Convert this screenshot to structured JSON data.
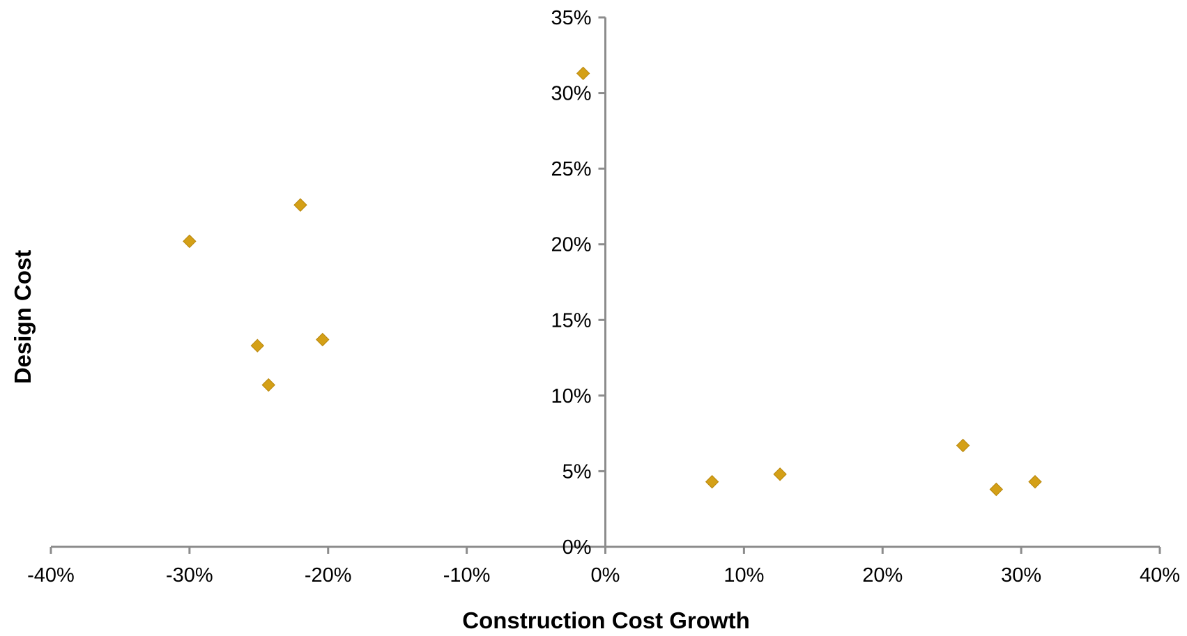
{
  "chart_data": {
    "type": "scatter",
    "title": "",
    "xlabel": "Construction Cost Growth",
    "ylabel": "Design Cost",
    "xlim": [
      -40,
      40
    ],
    "ylim": [
      0,
      35
    ],
    "x_ticks": [
      -40,
      -30,
      -20,
      -10,
      0,
      10,
      20,
      30,
      40
    ],
    "y_ticks": [
      0,
      5,
      10,
      15,
      20,
      25,
      30,
      35
    ],
    "x_tick_labels": [
      "-40%",
      "-30%",
      "-20%",
      "-10%",
      "0%",
      "10%",
      "20%",
      "30%",
      "40%"
    ],
    "y_tick_labels": [
      "0%",
      "5%",
      "10%",
      "15%",
      "20%",
      "25%",
      "30%",
      "35%"
    ],
    "grid": false,
    "legend": "none",
    "marker": "diamond",
    "marker_color": "#D4A017",
    "axis_color": "#8C8C8C",
    "series": [
      {
        "points": [
          {
            "x": -30.0,
            "y": 20.2
          },
          {
            "x": -22.0,
            "y": 22.6
          },
          {
            "x": -25.1,
            "y": 13.3
          },
          {
            "x": -24.3,
            "y": 10.7
          },
          {
            "x": -20.4,
            "y": 13.7
          },
          {
            "x": -1.6,
            "y": 31.3
          },
          {
            "x": 7.7,
            "y": 4.3
          },
          {
            "x": 12.6,
            "y": 4.8
          },
          {
            "x": 25.8,
            "y": 6.7
          },
          {
            "x": 28.2,
            "y": 3.8
          },
          {
            "x": 31.0,
            "y": 4.3
          }
        ]
      }
    ]
  }
}
